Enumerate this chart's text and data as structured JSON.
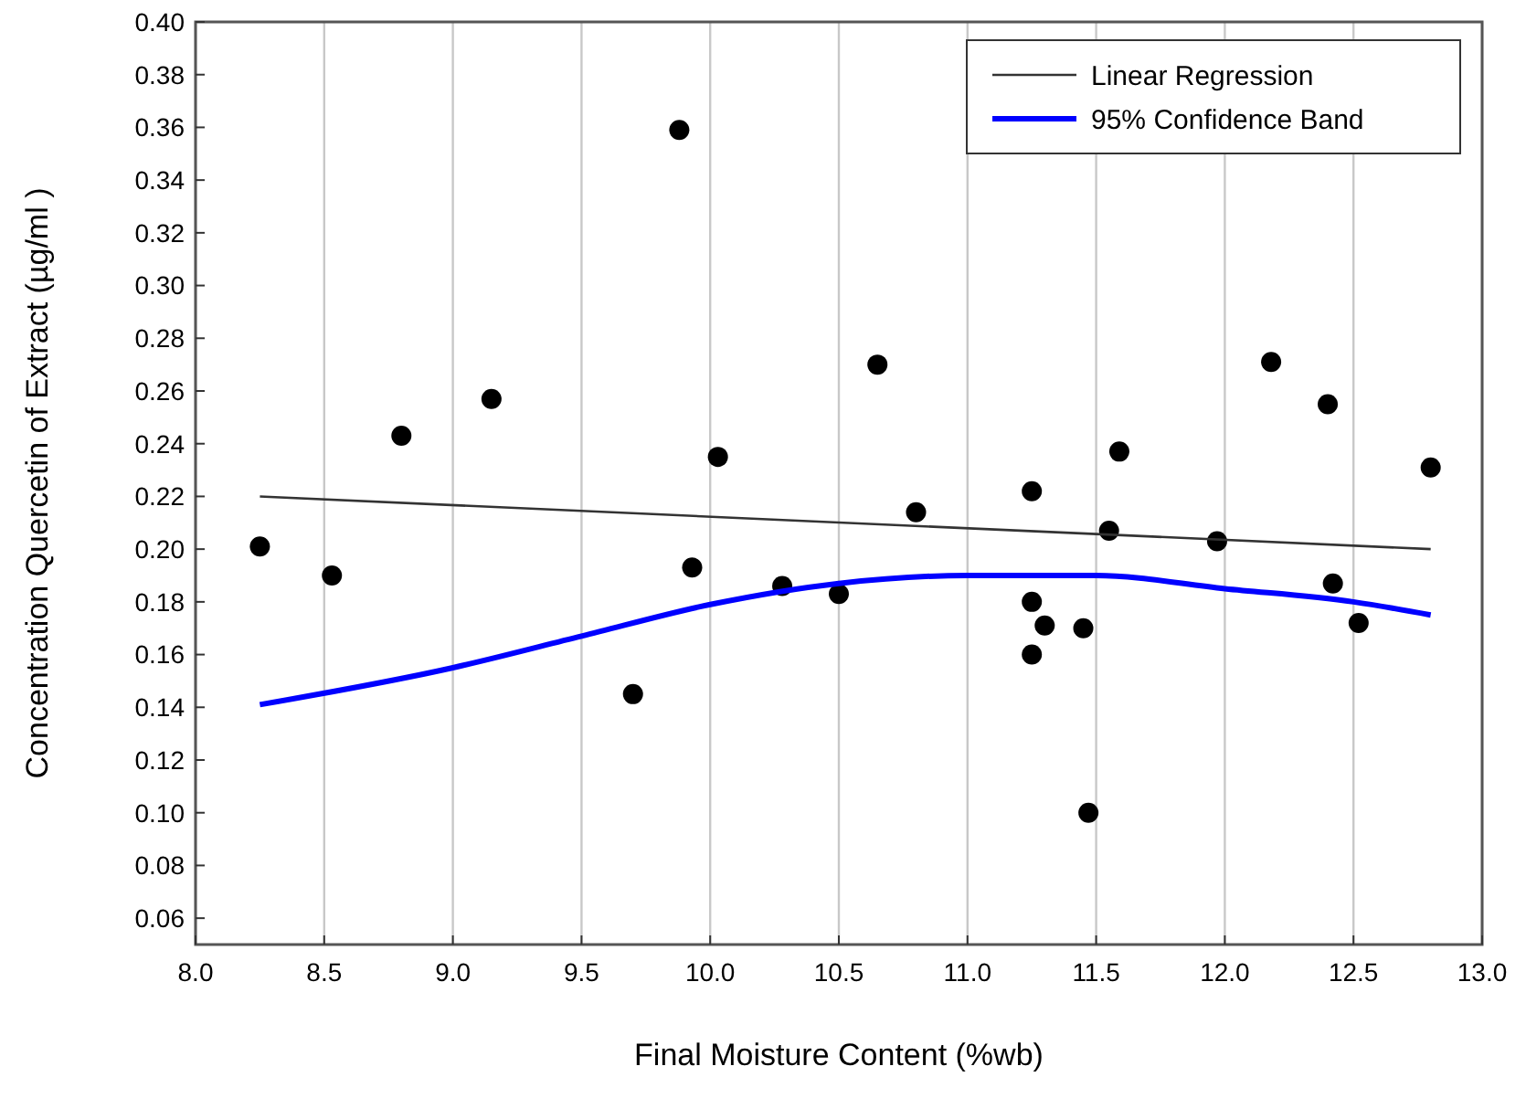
{
  "chart_data": {
    "type": "scatter",
    "xlabel": "Final Moisture Content (%wb)",
    "ylabel": "Concentration Quercetin of Extract (µg/ml )",
    "xlim": [
      8,
      13
    ],
    "ylim": [
      0.05,
      0.4
    ],
    "xticks": [
      {
        "value": 8,
        "label": "8.0"
      },
      {
        "value": 8.5,
        "label": "8.5"
      },
      {
        "value": 9,
        "label": "9.0"
      },
      {
        "value": 9.5,
        "label": "9.5"
      },
      {
        "value": 10,
        "label": "10.0"
      },
      {
        "value": 10.5,
        "label": "10.5"
      },
      {
        "value": 11,
        "label": "11.0"
      },
      {
        "value": 11.5,
        "label": "11.5"
      },
      {
        "value": 12,
        "label": "12.0"
      },
      {
        "value": 12.5,
        "label": "12.5"
      },
      {
        "value": 13,
        "label": "13.0"
      }
    ],
    "yticks": [
      {
        "value": 0.06,
        "label": "0.06"
      },
      {
        "value": 0.08,
        "label": "0.08"
      },
      {
        "value": 0.1,
        "label": "0.10"
      },
      {
        "value": 0.12,
        "label": "0.12"
      },
      {
        "value": 0.14,
        "label": "0.14"
      },
      {
        "value": 0.16,
        "label": "0.16"
      },
      {
        "value": 0.18,
        "label": "0.18"
      },
      {
        "value": 0.2,
        "label": "0.20"
      },
      {
        "value": 0.22,
        "label": "0.22"
      },
      {
        "value": 0.24,
        "label": "0.24"
      },
      {
        "value": 0.26,
        "label": "0.26"
      },
      {
        "value": 0.28,
        "label": "0.28"
      },
      {
        "value": 0.3,
        "label": "0.30"
      },
      {
        "value": 0.32,
        "label": "0.32"
      },
      {
        "value": 0.34,
        "label": "0.34"
      },
      {
        "value": 0.36,
        "label": "0.36"
      },
      {
        "value": 0.38,
        "label": "0.38"
      },
      {
        "value": 0.4,
        "label": "0.40"
      }
    ],
    "grid": "x",
    "legend": "top right",
    "marker": "circle",
    "series": [
      {
        "color": "#000000",
        "x": [
          8.25,
          8.53,
          8.8,
          9.15,
          9.7,
          9.88,
          9.93,
          10.03,
          10.28,
          10.5,
          10.65,
          10.8,
          11.25,
          11.25,
          11.25,
          11.3,
          11.45,
          11.47,
          11.55,
          11.59,
          11.97,
          12.18,
          12.4,
          12.42,
          12.52,
          12.8
        ],
        "values": [
          0.201,
          0.19,
          0.243,
          0.257,
          0.145,
          0.359,
          0.193,
          0.235,
          0.186,
          0.183,
          0.27,
          0.214,
          0.222,
          0.18,
          0.16,
          0.171,
          0.17,
          0.1,
          0.207,
          0.237,
          0.203,
          0.271,
          0.255,
          0.187,
          0.172,
          0.231
        ]
      },
      {
        "type": "line",
        "name": "Linear Regression",
        "color": "#333333",
        "marker": "none",
        "x": [
          8.25,
          12.8
        ],
        "values": [
          0.22,
          0.2
        ]
      },
      {
        "type": "line",
        "name": "95% Confidence Band",
        "color": "#0000ff",
        "marker": "none",
        "x": [
          8.25,
          9,
          9.5,
          10,
          10.5,
          11,
          11.5,
          12,
          12.5,
          12.8
        ],
        "values": [
          0.141,
          0.155,
          0.167,
          0.179,
          0.187,
          0.19,
          0.19,
          0.185,
          0.18,
          0.175
        ]
      }
    ]
  }
}
